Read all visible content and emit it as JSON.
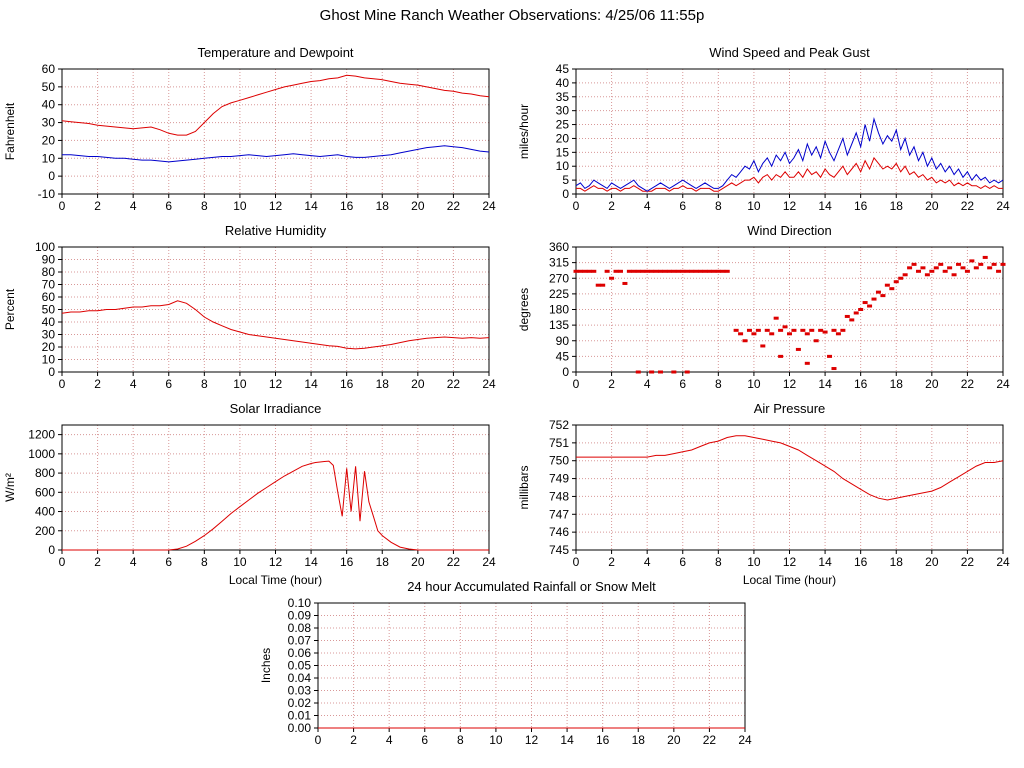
{
  "page_title": "Ghost Mine Ranch Weather Observations: 4/25/06 11:55p",
  "colors": {
    "red": "#dd0000",
    "blue": "#0000cc",
    "grid": "#d89898",
    "axis": "#000000",
    "background": "#ffffff"
  },
  "charts": [
    {
      "title": "Temperature and Dewpoint",
      "type": "line",
      "ylabel": "Fahrenheit",
      "xlim": [
        0,
        24
      ],
      "ylim": [
        -10,
        60
      ],
      "xticks": [
        "0",
        "2",
        "4",
        "6",
        "8",
        "10",
        "12",
        "14",
        "16",
        "18",
        "20",
        "22",
        "24"
      ],
      "yticks": [
        "-10",
        "0",
        "10",
        "20",
        "30",
        "40",
        "50",
        "60"
      ],
      "series": [
        {
          "name": "temperature",
          "color": "#dd0000",
          "xstart": 0,
          "xstep": 0.5,
          "y": [
            31,
            30.5,
            30,
            29.5,
            28.5,
            28,
            27.5,
            27,
            26.5,
            27,
            27.5,
            26,
            24,
            23,
            23,
            25,
            30,
            35,
            39,
            41,
            42.5,
            44,
            45.5,
            47,
            48.5,
            50,
            51,
            52,
            53,
            53.5,
            54.5,
            55,
            56.5,
            56,
            55,
            54.5,
            54,
            53,
            52,
            51.5,
            51,
            50,
            49,
            48,
            47.5,
            46.5,
            46,
            45,
            44.5
          ]
        },
        {
          "name": "dewpoint",
          "color": "#0000cc",
          "xstart": 0,
          "xstep": 0.5,
          "y": [
            12,
            12,
            11.5,
            11,
            11,
            10.5,
            10,
            10,
            9.5,
            9,
            9,
            8.5,
            8,
            8.5,
            9,
            9.5,
            10,
            10.5,
            11,
            11,
            11.5,
            12,
            11.5,
            11,
            11.5,
            12,
            12.5,
            12,
            11.5,
            11,
            11.5,
            12,
            11,
            10.5,
            10.5,
            11,
            11.5,
            12,
            13,
            14,
            15,
            16,
            16.5,
            17,
            16.5,
            16,
            15,
            14,
            13.5
          ]
        }
      ]
    },
    {
      "title": "Wind Speed and Peak Gust",
      "type": "line",
      "ylabel": "miles/hour",
      "xlim": [
        0,
        24
      ],
      "ylim": [
        0,
        45
      ],
      "xticks": [
        "0",
        "2",
        "4",
        "6",
        "8",
        "10",
        "12",
        "14",
        "16",
        "18",
        "20",
        "22",
        "24"
      ],
      "yticks": [
        "0",
        "5",
        "10",
        "15",
        "20",
        "25",
        "30",
        "35",
        "40",
        "45"
      ],
      "series": [
        {
          "name": "wind-speed",
          "color": "#dd0000",
          "xstart": 0,
          "xstep": 0.25,
          "y": [
            2,
            2,
            1,
            2,
            3,
            2,
            2,
            1,
            2,
            2,
            1,
            2,
            2,
            3,
            2,
            1,
            1,
            1,
            2,
            2,
            2,
            1,
            2,
            2,
            3,
            2,
            2,
            1,
            2,
            2,
            2,
            1,
            1,
            2,
            3,
            4,
            3,
            4,
            5,
            5,
            6,
            4,
            6,
            7,
            5,
            7,
            6,
            8,
            6,
            6,
            8,
            6,
            9,
            7,
            8,
            6,
            9,
            7,
            6,
            8,
            10,
            7,
            9,
            11,
            8,
            12,
            9,
            13,
            11,
            9,
            10,
            9,
            11,
            8,
            10,
            7,
            8,
            6,
            7,
            5,
            6,
            4,
            5,
            4,
            5,
            3,
            4,
            3,
            4,
            3,
            3,
            2,
            3,
            2,
            3,
            2,
            2
          ]
        },
        {
          "name": "peak-gust",
          "color": "#0000cc",
          "xstart": 0,
          "xstep": 0.25,
          "y": [
            3,
            4,
            2,
            3,
            5,
            4,
            3,
            2,
            4,
            3,
            2,
            3,
            4,
            5,
            3,
            2,
            1,
            2,
            3,
            4,
            3,
            2,
            3,
            4,
            5,
            4,
            3,
            2,
            3,
            4,
            3,
            2,
            2,
            3,
            5,
            7,
            6,
            8,
            10,
            9,
            12,
            8,
            11,
            13,
            10,
            14,
            12,
            15,
            11,
            13,
            16,
            12,
            18,
            14,
            17,
            13,
            19,
            15,
            12,
            16,
            20,
            14,
            18,
            22,
            17,
            25,
            19,
            27,
            22,
            18,
            21,
            19,
            23,
            16,
            20,
            14,
            17,
            12,
            15,
            10,
            13,
            9,
            11,
            8,
            10,
            7,
            9,
            6,
            8,
            5,
            7,
            5,
            6,
            4,
            5,
            4,
            5
          ]
        }
      ]
    },
    {
      "title": "Relative Humidity",
      "type": "line",
      "ylabel": "Percent",
      "xlim": [
        0,
        24
      ],
      "ylim": [
        0,
        100
      ],
      "xticks": [
        "0",
        "2",
        "4",
        "6",
        "8",
        "10",
        "12",
        "14",
        "16",
        "18",
        "20",
        "22",
        "24"
      ],
      "yticks": [
        "0",
        "10",
        "20",
        "30",
        "40",
        "50",
        "60",
        "70",
        "80",
        "90",
        "100"
      ],
      "series": [
        {
          "name": "relative-humidity",
          "color": "#dd0000",
          "xstart": 0,
          "xstep": 0.5,
          "y": [
            47,
            48,
            48,
            49,
            49,
            50,
            50,
            51,
            52,
            52,
            53,
            53,
            54,
            57,
            55,
            50,
            44,
            40,
            37,
            34,
            32,
            30,
            29,
            28,
            27,
            26,
            25,
            24,
            23,
            22,
            21,
            20.5,
            19,
            18.5,
            19,
            20,
            21,
            22,
            23.5,
            25,
            26,
            27,
            27.5,
            28,
            27.5,
            27,
            27.5,
            27,
            27.5
          ]
        }
      ]
    },
    {
      "title": "Wind Direction",
      "type": "scatter",
      "ylabel": "degrees",
      "xlim": [
        0,
        24
      ],
      "ylim": [
        0,
        360
      ],
      "xticks": [
        "0",
        "2",
        "4",
        "6",
        "8",
        "10",
        "12",
        "14",
        "16",
        "18",
        "20",
        "22",
        "24"
      ],
      "yticks": [
        "0",
        "45",
        "90",
        "135",
        "180",
        "225",
        "270",
        "315",
        "360"
      ],
      "series": [
        {
          "name": "wind-direction",
          "color": "#dd0000",
          "x": [
            0,
            0.25,
            0.5,
            0.75,
            1,
            1.25,
            1.5,
            1.75,
            2,
            2.25,
            2.5,
            2.75,
            3,
            3.25,
            3.5,
            3.75,
            4,
            4.25,
            4.5,
            4.75,
            5,
            5.25,
            5.5,
            5.75,
            6,
            6.25,
            6.5,
            6.75,
            7,
            7.25,
            7.5,
            7.75,
            8,
            8.25,
            8.5,
            3.5,
            4.25,
            4.75,
            5.5,
            6.25,
            9,
            9.25,
            9.5,
            9.75,
            10,
            10.25,
            10.5,
            10.75,
            11,
            11.25,
            11.5,
            11.75,
            12,
            12.25,
            12.5,
            12.75,
            13,
            13.25,
            13.5,
            13.75,
            14,
            14.25,
            14.5,
            14.75,
            15,
            11.5,
            13,
            14.5,
            15.25,
            15.5,
            15.75,
            16,
            16.25,
            16.5,
            16.75,
            17,
            17.25,
            17.5,
            17.75,
            18,
            18.25,
            18.5,
            18.75,
            19,
            19.25,
            19.5,
            19.75,
            20,
            20.25,
            20.5,
            20.75,
            21,
            21.25,
            21.5,
            21.75,
            22,
            22.25,
            22.5,
            22.75,
            23,
            23.25,
            23.5,
            23.75,
            24
          ],
          "y": [
            290,
            290,
            290,
            290,
            290,
            250,
            250,
            290,
            270,
            290,
            290,
            255,
            290,
            290,
            290,
            290,
            290,
            290,
            290,
            290,
            290,
            290,
            290,
            290,
            290,
            290,
            290,
            290,
            290,
            290,
            290,
            290,
            290,
            290,
            290,
            0,
            0,
            0,
            0,
            0,
            120,
            110,
            90,
            120,
            110,
            120,
            75,
            120,
            110,
            155,
            120,
            130,
            110,
            120,
            65,
            120,
            110,
            120,
            90,
            120,
            115,
            45,
            120,
            110,
            120,
            45,
            25,
            10,
            160,
            150,
            170,
            180,
            200,
            190,
            210,
            230,
            220,
            250,
            240,
            260,
            270,
            280,
            300,
            310,
            290,
            300,
            280,
            290,
            300,
            310,
            290,
            300,
            280,
            310,
            300,
            290,
            320,
            300,
            310,
            330,
            300,
            310,
            290,
            310
          ]
        }
      ]
    },
    {
      "title": "Solar Irradiance",
      "type": "line",
      "ylabel": "W/m²",
      "xlabel": "Local Time (hour)",
      "xlim": [
        0,
        24
      ],
      "ylim": [
        0,
        1300
      ],
      "xticks": [
        "0",
        "2",
        "4",
        "6",
        "8",
        "10",
        "12",
        "14",
        "16",
        "18",
        "20",
        "22",
        "24"
      ],
      "yticks": [
        "0",
        "200",
        "400",
        "600",
        "800",
        "1000",
        "1200"
      ],
      "series": [
        {
          "name": "solar-irradiance",
          "color": "#dd0000",
          "x": [
            0,
            1,
            2,
            3,
            4,
            5,
            6,
            6.5,
            7,
            7.5,
            8,
            8.5,
            9,
            9.5,
            10,
            10.5,
            11,
            11.5,
            12,
            12.5,
            13,
            13.5,
            14,
            14.25,
            14.5,
            14.75,
            15,
            15.25,
            15.5,
            15.75,
            16,
            16.25,
            16.5,
            16.75,
            17,
            17.25,
            17.5,
            17.75,
            18,
            18.5,
            19,
            19.5,
            20,
            21,
            22,
            23,
            24
          ],
          "y": [
            0,
            0,
            0,
            0,
            0,
            0,
            0,
            10,
            40,
            90,
            150,
            220,
            300,
            380,
            450,
            520,
            590,
            650,
            710,
            770,
            820,
            870,
            900,
            910,
            915,
            920,
            925,
            880,
            600,
            350,
            850,
            400,
            870,
            300,
            820,
            500,
            350,
            200,
            150,
            80,
            30,
            10,
            0,
            0,
            0,
            0,
            0
          ]
        }
      ]
    },
    {
      "title": "Air Pressure",
      "type": "line",
      "ylabel": "millibars",
      "xlabel": "Local Time (hour)",
      "xlim": [
        0,
        24
      ],
      "ylim": [
        745,
        752
      ],
      "xticks": [
        "0",
        "2",
        "4",
        "6",
        "8",
        "10",
        "12",
        "14",
        "16",
        "18",
        "20",
        "22",
        "24"
      ],
      "yticks": [
        "745",
        "746",
        "747",
        "748",
        "749",
        "750",
        "751",
        "752"
      ],
      "series": [
        {
          "name": "air-pressure",
          "color": "#dd0000",
          "xstart": 0,
          "xstep": 0.5,
          "y": [
            750.2,
            750.2,
            750.2,
            750.2,
            750.2,
            750.2,
            750.2,
            750.2,
            750.2,
            750.3,
            750.3,
            750.4,
            750.5,
            750.6,
            750.8,
            751.0,
            751.1,
            751.3,
            751.4,
            751.4,
            751.3,
            751.2,
            751.1,
            751.0,
            750.8,
            750.6,
            750.3,
            750.0,
            749.7,
            749.4,
            749.0,
            748.7,
            748.4,
            748.1,
            747.9,
            747.8,
            747.9,
            748.0,
            748.1,
            748.2,
            748.3,
            748.5,
            748.8,
            749.1,
            749.4,
            749.7,
            749.9,
            749.9,
            750.0
          ]
        }
      ]
    },
    {
      "title": "24 hour Accumulated Rainfall or Snow Melt",
      "type": "line",
      "ylabel": "Inches",
      "xlim": [
        0,
        24
      ],
      "ylim": [
        0,
        0.1
      ],
      "xticks": [
        "0",
        "2",
        "4",
        "6",
        "8",
        "10",
        "12",
        "14",
        "16",
        "18",
        "20",
        "22",
        "24"
      ],
      "yticks": [
        "0.00",
        "0.01",
        "0.02",
        "0.03",
        "0.04",
        "0.05",
        "0.06",
        "0.07",
        "0.08",
        "0.09",
        "0.10"
      ],
      "series": [
        {
          "name": "rainfall",
          "color": "#dd0000",
          "xstart": 0,
          "xstep": 24,
          "y": [
            0,
            0
          ]
        }
      ]
    }
  ]
}
